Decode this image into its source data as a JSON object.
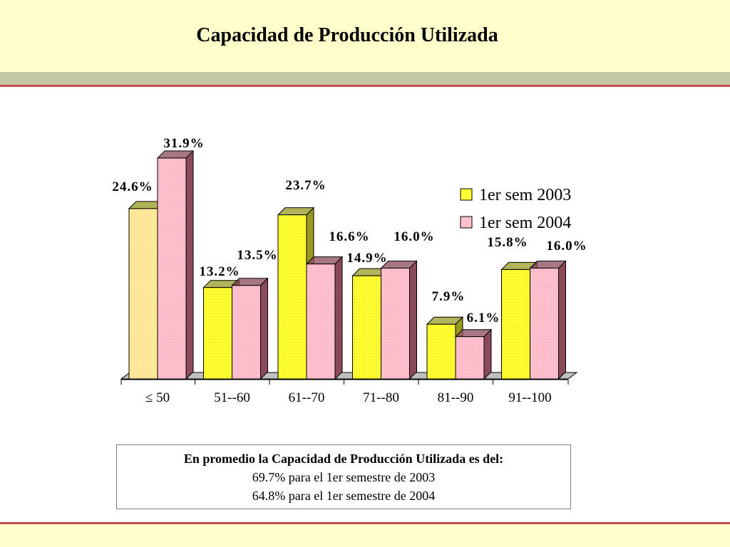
{
  "title": "Capacidad de Producción Utilizada",
  "colors": {
    "series_2003": "#ffff33",
    "series_2003_first": "#ffe89a",
    "series_2004": "#ffbfcc",
    "side_2003": "#999922",
    "side_2004": "#8a4a5a",
    "band": "#ffffcc",
    "accent_line": "#c0504d"
  },
  "chart_data": {
    "type": "bar",
    "categories": [
      "≤ 50",
      "51--60",
      "61--70",
      "71--80",
      "81--90",
      "91--100"
    ],
    "series": [
      {
        "name": "1er sem 2003",
        "values": [
          24.6,
          13.2,
          23.7,
          14.9,
          7.9,
          15.8
        ],
        "labels": [
          "24.6%",
          "13.2%",
          "23.7%",
          "14.9%",
          "7.9%",
          "15.8%"
        ]
      },
      {
        "name": "1er sem 2004",
        "values": [
          31.9,
          13.5,
          16.6,
          16.0,
          6.1,
          16.0
        ],
        "labels": [
          "31.9%",
          "13.5%",
          "16.6%",
          "16.0%",
          "6.1%",
          "16.0%"
        ]
      }
    ],
    "ylim": [
      0,
      32
    ],
    "legend": "right",
    "grid": false
  },
  "note": {
    "line1": "En promedio la  Capacidad de Producción Utilizada es del:",
    "line2": "69.7% para el 1er semestre de 2003",
    "line3": "64.8% para el  1er semestre de 2004"
  }
}
